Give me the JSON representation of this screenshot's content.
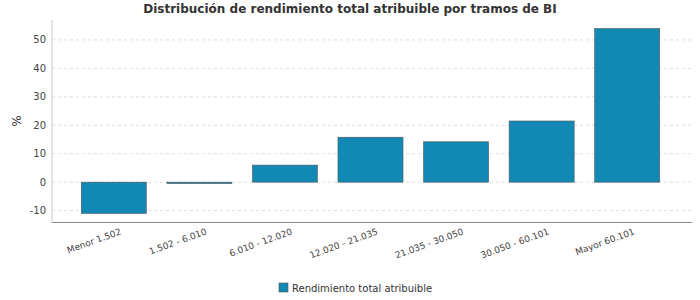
{
  "chart_data": {
    "type": "bar",
    "title": "Distribución de rendimiento total atribuible por tramos de BI",
    "ylabel": "%",
    "categories": [
      "Menor 1.502",
      "1.502 - 6.010",
      "6.010 - 12.020",
      "12.020 - 21.035",
      "21.035 - 30.050",
      "30.050 - 60.101",
      "Mayor 60.101"
    ],
    "series": [
      {
        "name": "Rendimiento total atribuible",
        "color": "#1289b5",
        "values": [
          -11,
          -0.5,
          6,
          15.8,
          14.2,
          21.5,
          54
        ]
      }
    ],
    "ylim": [
      -14,
      57
    ],
    "yticks": [
      -10,
      0,
      10,
      20,
      30,
      40,
      50
    ],
    "grid": true,
    "legend": "bottom"
  }
}
